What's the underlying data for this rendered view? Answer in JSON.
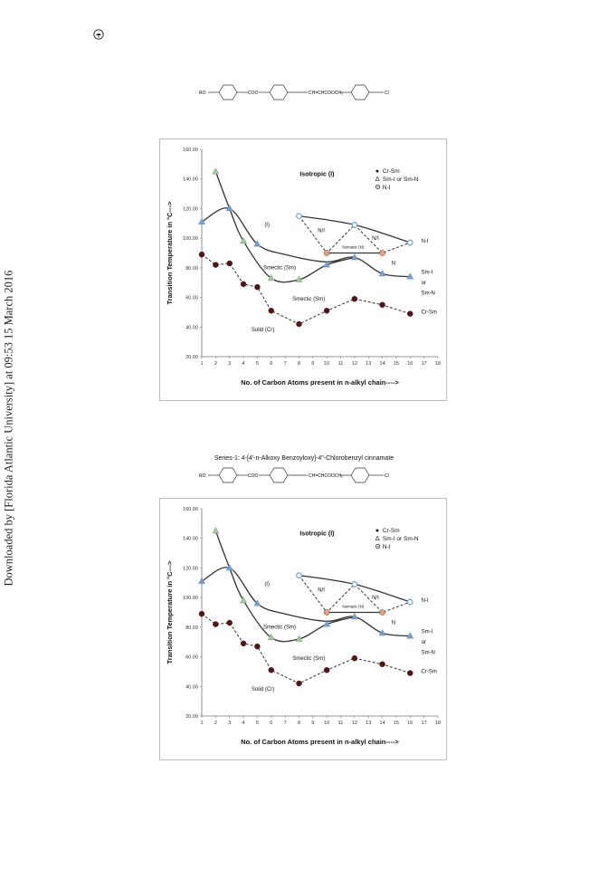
{
  "page": {
    "sidebar_text": "Downloaded by [Florida Atlantic University] at 09:53 15 March 2016",
    "logo_icon": "publisher-logo-icon",
    "series_title": "Series-1: 4-[4'-n-Alkoxy Benzoyloxy]-4\"-Chlorobenzyl cinnamate"
  },
  "molecule": {
    "ro": "RO",
    "coo": "COO",
    "linker": "CH=CHCOOCH₂",
    "cl": "Cl"
  },
  "chart_data": [
    {
      "type": "line",
      "title": "",
      "xlabel": "No. of Carbon Atoms present in n-alkyl chain---->",
      "ylabel": "Transition Temperature in °C--->",
      "xlim": [
        1,
        18
      ],
      "ylim": [
        20,
        160
      ],
      "xticks": [
        "1",
        "2",
        "3",
        "4",
        "5",
        "6",
        "7",
        "8",
        "9",
        "10",
        "11",
        "12",
        "13",
        "14",
        "15",
        "16",
        "17",
        "18"
      ],
      "yticks": [
        "20.00",
        "40.00",
        "60.00",
        "80.00",
        "100.00",
        "120.00",
        "140.00",
        "160.00"
      ],
      "grid": false,
      "legend": {
        "placement": "top-right",
        "entries": [
          {
            "symbol": "●",
            "label": "Cr-Sm"
          },
          {
            "symbol": "Δ",
            "label": "Sm-I or Sm-N"
          },
          {
            "symbol": "Θ",
            "label": "N-I"
          }
        ]
      },
      "series": [
        {
          "x": [
            1,
            2,
            3,
            4,
            5,
            6,
            8,
            10,
            12,
            14,
            16
          ],
          "y": [
            89,
            82,
            83,
            69,
            67,
            51,
            42,
            51,
            59,
            55,
            49
          ],
          "marker": "circle",
          "color": "#5a1212",
          "dash": true
        },
        {
          "x": [
            1,
            3,
            5
          ],
          "y": [
            111,
            120,
            96
          ],
          "marker": "triangle",
          "color": "#6aa0dd"
        },
        {
          "x": [
            2,
            4,
            6,
            8
          ],
          "y": [
            145,
            98,
            73,
            72
          ],
          "marker": "triangle",
          "color": "#9ccd8a"
        },
        {
          "x": [
            10,
            12,
            14,
            16
          ],
          "y": [
            82,
            87,
            76,
            74
          ],
          "marker": "triangle",
          "color": "#6aa0dd"
        },
        {
          "x": [
            8,
            12,
            16
          ],
          "y": [
            115,
            109,
            97
          ],
          "marker": "circle-open",
          "color": "#6aa0dd"
        },
        {
          "x": [
            10,
            14
          ],
          "y": [
            90,
            90
          ],
          "marker": "circle",
          "color": "#e8a37a"
        }
      ],
      "curves": [
        {
          "points": [
            [
              1,
              111
            ],
            [
              3,
              120
            ],
            [
              5,
              96
            ],
            [
              7,
              89
            ],
            [
              10,
              84
            ],
            [
              12,
              87
            ],
            [
              14,
              76
            ],
            [
              16,
              74
            ]
          ],
          "dash": false
        },
        {
          "points": [
            [
              2,
              145
            ],
            [
              3,
              120
            ],
            [
              4,
              98
            ],
            [
              6,
              73
            ],
            [
              8,
              72
            ],
            [
              10,
              82
            ],
            [
              12,
              87
            ]
          ],
          "dash": false
        },
        {
          "points": [
            [
              8,
              115
            ],
            [
              12,
              109
            ],
            [
              16,
              97
            ]
          ],
          "dash": false
        },
        {
          "points": [
            [
              10,
              90
            ],
            [
              14,
              90
            ]
          ],
          "dash": false
        },
        {
          "points": [
            [
              8,
              115
            ],
            [
              10,
              90
            ],
            [
              12,
              109
            ],
            [
              14,
              90
            ],
            [
              16,
              97
            ]
          ],
          "dash": true
        },
        {
          "points": [
            [
              1,
              89
            ],
            [
              2,
              82
            ],
            [
              3,
              83
            ],
            [
              4,
              69
            ],
            [
              5,
              67
            ],
            [
              6,
              51
            ],
            [
              8,
              42
            ],
            [
              10,
              51
            ],
            [
              12,
              59
            ],
            [
              14,
              55
            ],
            [
              16,
              49
            ]
          ],
          "dash": true
        }
      ],
      "annotations": [
        {
          "text": "Isotropic (I)",
          "x": 9.3,
          "y": 142,
          "bold": true
        },
        {
          "text": "(I)",
          "x": 5.7,
          "y": 108
        },
        {
          "text": "N/I",
          "x": 9.6,
          "y": 104
        },
        {
          "text": "N/I",
          "x": 13.5,
          "y": 99
        },
        {
          "text": "Nematic (N)",
          "x": 11.9,
          "y": 93
        },
        {
          "text": "N",
          "x": 14.8,
          "y": 82
        },
        {
          "text": "Smectic (Sm)",
          "x": 6.6,
          "y": 79
        },
        {
          "text": "Smectic (Sm)",
          "x": 8.7,
          "y": 58
        },
        {
          "text": "Solid (Cr)",
          "x": 5.4,
          "y": 37
        },
        {
          "text": "N-I",
          "x": 16.8,
          "y": 97
        },
        {
          "text": "Sm-I",
          "x": 16.8,
          "y": 76
        },
        {
          "text": "or",
          "x": 16.8,
          "y": 69
        },
        {
          "text": "Sm-N",
          "x": 16.8,
          "y": 62
        },
        {
          "text": "Cr-Sm",
          "x": 16.8,
          "y": 49
        }
      ]
    },
    {
      "type": "line",
      "title": "",
      "xlabel": "No. of Carbon Atoms present in n-alkyl chain---->",
      "ylabel": "Transition Temperature in °C--->",
      "xlim": [
        1,
        18
      ],
      "ylim": [
        20,
        160
      ],
      "xticks": [
        "1",
        "2",
        "3",
        "4",
        "5",
        "6",
        "7",
        "8",
        "9",
        "10",
        "11",
        "12",
        "13",
        "14",
        "15",
        "16",
        "17",
        "18"
      ],
      "yticks": [
        "20.00",
        "40.00",
        "60.00",
        "80.00",
        "100.00",
        "120.00",
        "140.00",
        "160.00"
      ],
      "grid": false,
      "legend": {
        "placement": "top-right",
        "entries": [
          {
            "symbol": "●",
            "label": "Cr-Sm"
          },
          {
            "symbol": "Δ",
            "label": "Sm-I or Sm-N"
          },
          {
            "symbol": "Θ",
            "label": "N-I"
          }
        ]
      },
      "series": [
        {
          "x": [
            1,
            2,
            3,
            4,
            5,
            6,
            8,
            10,
            12,
            14,
            16
          ],
          "y": [
            89,
            82,
            83,
            69,
            67,
            51,
            42,
            51,
            59,
            55,
            49
          ],
          "marker": "circle",
          "color": "#5a1212",
          "dash": true
        },
        {
          "x": [
            1,
            3,
            5
          ],
          "y": [
            111,
            120,
            96
          ],
          "marker": "triangle",
          "color": "#6aa0dd"
        },
        {
          "x": [
            2,
            4,
            6,
            8
          ],
          "y": [
            145,
            98,
            73,
            72
          ],
          "marker": "triangle",
          "color": "#9ccd8a"
        },
        {
          "x": [
            10,
            12,
            14,
            16
          ],
          "y": [
            82,
            87,
            76,
            74
          ],
          "marker": "triangle",
          "color": "#6aa0dd"
        },
        {
          "x": [
            8,
            12,
            16
          ],
          "y": [
            115,
            109,
            97
          ],
          "marker": "circle-open",
          "color": "#6aa0dd"
        },
        {
          "x": [
            10,
            14
          ],
          "y": [
            90,
            90
          ],
          "marker": "circle",
          "color": "#e8a37a"
        }
      ],
      "curves": [
        {
          "points": [
            [
              1,
              111
            ],
            [
              3,
              120
            ],
            [
              5,
              96
            ],
            [
              7,
              89
            ],
            [
              10,
              84
            ],
            [
              12,
              87
            ],
            [
              14,
              76
            ],
            [
              16,
              74
            ]
          ],
          "dash": false
        },
        {
          "points": [
            [
              2,
              145
            ],
            [
              3,
              120
            ],
            [
              4,
              98
            ],
            [
              6,
              73
            ],
            [
              8,
              72
            ],
            [
              10,
              82
            ],
            [
              12,
              87
            ]
          ],
          "dash": false
        },
        {
          "points": [
            [
              8,
              115
            ],
            [
              12,
              109
            ],
            [
              16,
              97
            ]
          ],
          "dash": false
        },
        {
          "points": [
            [
              10,
              90
            ],
            [
              14,
              90
            ]
          ],
          "dash": false
        },
        {
          "points": [
            [
              8,
              115
            ],
            [
              10,
              90
            ],
            [
              12,
              109
            ],
            [
              14,
              90
            ],
            [
              16,
              97
            ]
          ],
          "dash": true
        },
        {
          "points": [
            [
              1,
              89
            ],
            [
              2,
              82
            ],
            [
              3,
              83
            ],
            [
              4,
              69
            ],
            [
              5,
              67
            ],
            [
              6,
              51
            ],
            [
              8,
              42
            ],
            [
              10,
              51
            ],
            [
              12,
              59
            ],
            [
              14,
              55
            ],
            [
              16,
              49
            ]
          ],
          "dash": true
        }
      ],
      "annotations": [
        {
          "text": "Isotropic (I)",
          "x": 9.3,
          "y": 142,
          "bold": true
        },
        {
          "text": "(I)",
          "x": 5.7,
          "y": 108
        },
        {
          "text": "N/I",
          "x": 9.6,
          "y": 104
        },
        {
          "text": "N/I",
          "x": 13.5,
          "y": 99
        },
        {
          "text": "Nematic (N)",
          "x": 11.9,
          "y": 93
        },
        {
          "text": "N",
          "x": 14.8,
          "y": 82
        },
        {
          "text": "Smectic (Sm)",
          "x": 6.6,
          "y": 79
        },
        {
          "text": "Smectic (Sm)",
          "x": 8.7,
          "y": 58
        },
        {
          "text": "Solid (Cr)",
          "x": 5.4,
          "y": 37
        },
        {
          "text": "N-I",
          "x": 16.8,
          "y": 97
        },
        {
          "text": "Sm-I",
          "x": 16.8,
          "y": 76
        },
        {
          "text": "or",
          "x": 16.8,
          "y": 69
        },
        {
          "text": "Sm-N",
          "x": 16.8,
          "y": 62
        },
        {
          "text": "Cr-Sm",
          "x": 16.8,
          "y": 49
        }
      ]
    }
  ]
}
